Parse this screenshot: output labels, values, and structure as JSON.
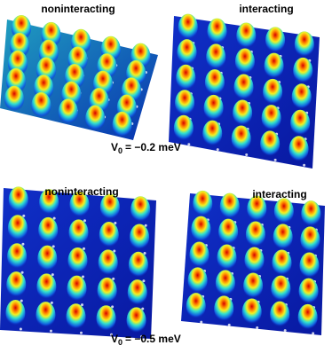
{
  "figure": {
    "panels": [
      {
        "title": "noninteracting"
      },
      {
        "title": "interacting"
      },
      {
        "title": "noninteracting"
      },
      {
        "title": "interacting"
      }
    ],
    "potential_labels": [
      {
        "symbol": "V",
        "subscript": "0",
        "text": "= −0.2 meV"
      },
      {
        "symbol": "V",
        "subscript": "0",
        "text": "= −0.5 meV"
      }
    ]
  }
}
